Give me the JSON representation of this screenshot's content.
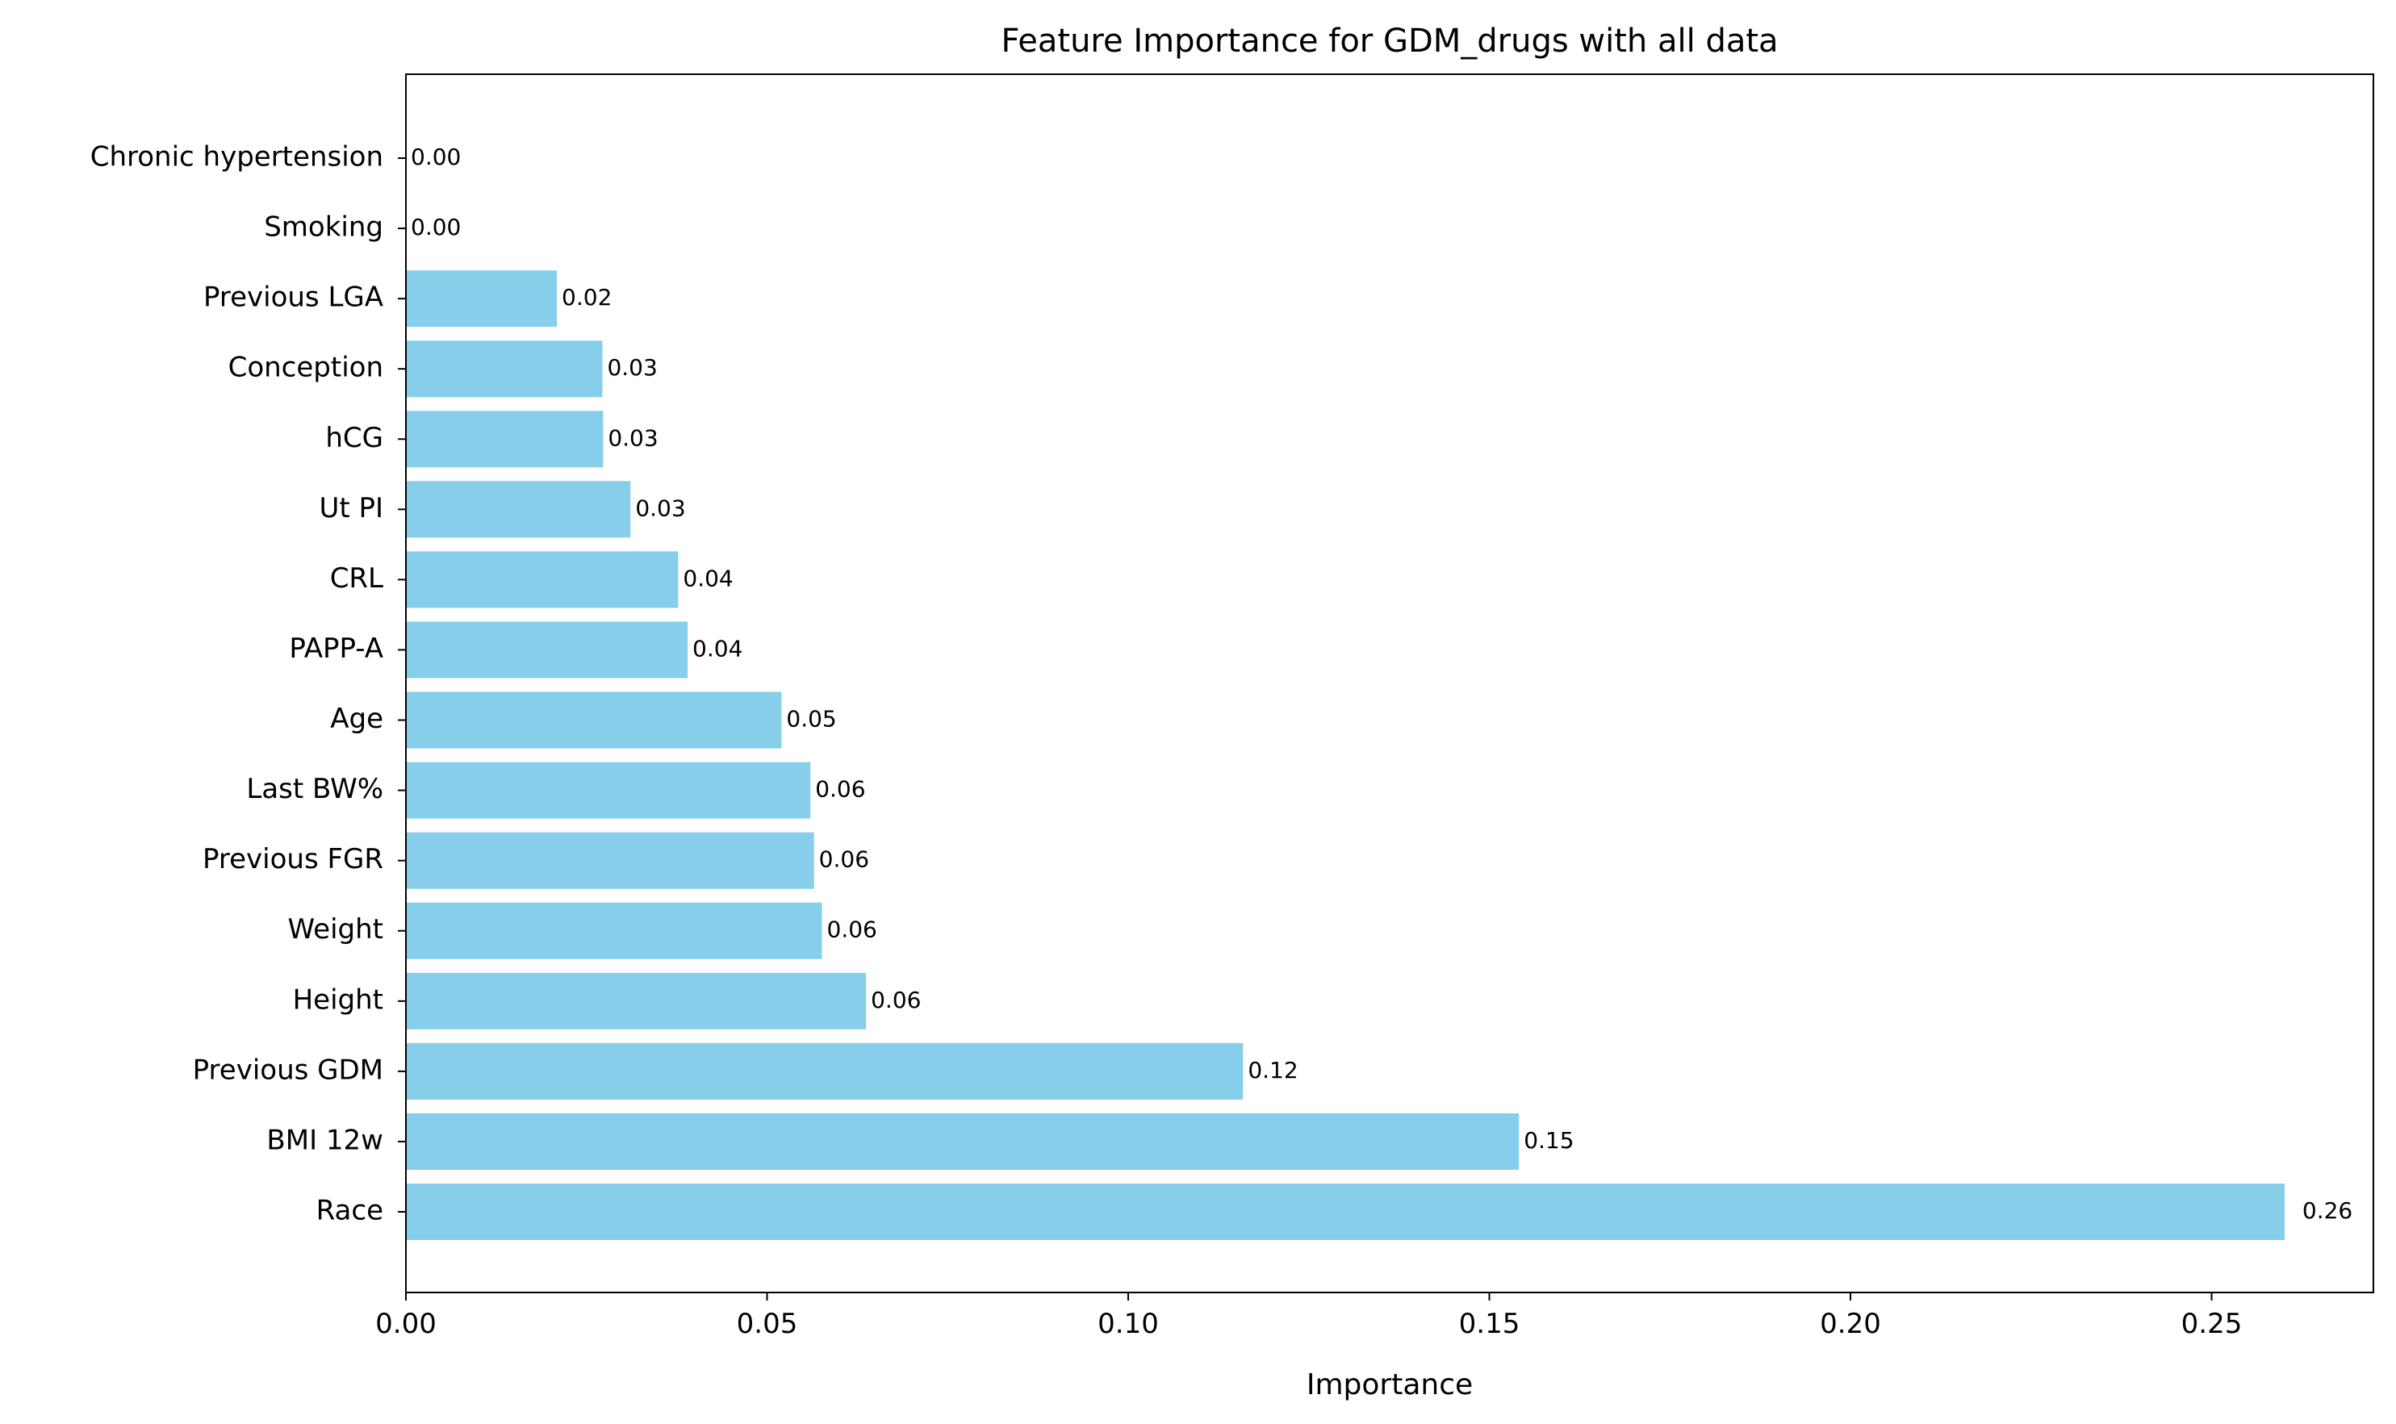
{
  "chart_data": {
    "type": "bar",
    "orientation": "horizontal",
    "title": "Feature Importance for GDM_drugs with all data",
    "xlabel": "Importance",
    "ylabel": "",
    "xlim": [
      0,
      0.2724
    ],
    "xticks": [
      "0.00",
      "0.05",
      "0.10",
      "0.15",
      "0.20",
      "0.25"
    ],
    "xtick_values": [
      0,
      0.05,
      0.1,
      0.15,
      0.2,
      0.25
    ],
    "bar_color": "#87CEEB",
    "grid": false,
    "categories": [
      "Chronic hypertension",
      "Smoking",
      "Previous LGA",
      "Conception",
      "hCG",
      "Ut PI",
      "CRL",
      "PAPP-A",
      "Age",
      "Last BW%",
      "Previous FGR",
      "Weight",
      "Height",
      "Previous GDM",
      "BMI 12w",
      "Race"
    ],
    "values": [
      0.0,
      0.0,
      0.0209,
      0.0272,
      0.0273,
      0.0311,
      0.0377,
      0.039,
      0.052,
      0.056,
      0.0565,
      0.0576,
      0.0637,
      0.1159,
      0.1541,
      0.2601
    ],
    "value_labels": [
      "0.00",
      "0.00",
      "0.02",
      "0.03",
      "0.03",
      "0.03",
      "0.04",
      "0.04",
      "0.05",
      "0.06",
      "0.06",
      "0.06",
      "0.06",
      "0.12",
      "0.15",
      "0.26"
    ]
  }
}
